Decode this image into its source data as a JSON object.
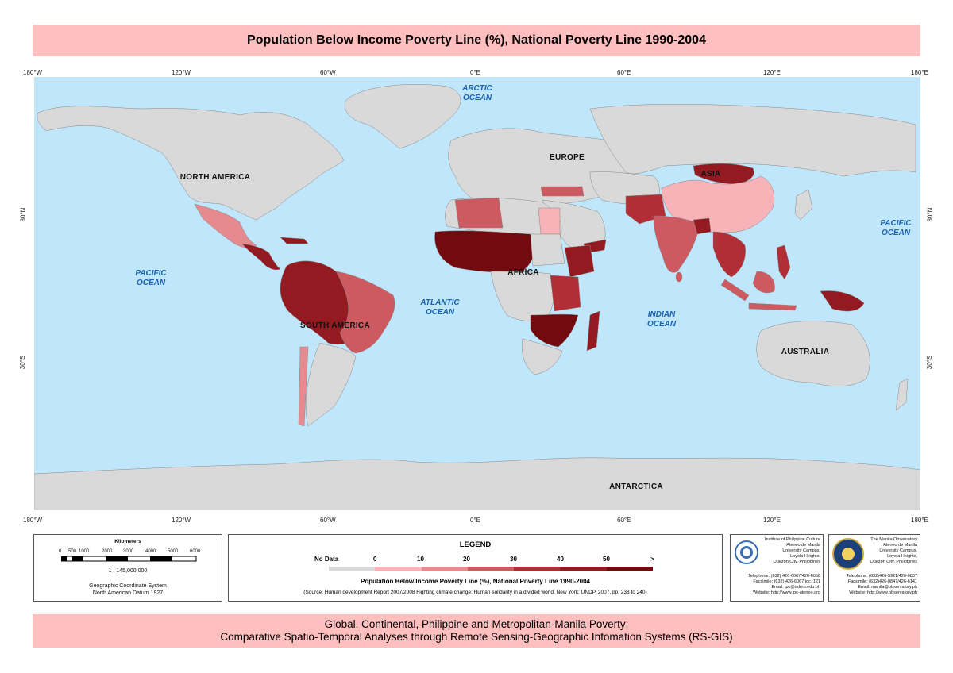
{
  "title": "Population Below Income Poverty Line (%), National Poverty Line 1990-2004",
  "longitude_ticks": [
    "180°W",
    "120°W",
    "60°W",
    "0°E",
    "60°E",
    "120°E",
    "180°E"
  ],
  "latitude_ticks": [
    "30°N",
    "30°S"
  ],
  "map_labels": {
    "oceans": {
      "arctic_1": "ARCTIC",
      "arctic_2": "OCEAN",
      "pacific_w_1": "PACIFIC",
      "pacific_w_2": "OCEAN",
      "pacific_e_1": "PACIFIC",
      "pacific_e_2": "OCEAN",
      "atlantic_1": "ATLANTIC",
      "atlantic_2": "OCEAN",
      "indian_1": "INDIAN",
      "indian_2": "OCEAN"
    },
    "continents": {
      "north_america": "NORTH AMERICA",
      "south_america": "SOUTH AMERICA",
      "europe": "EUROPE",
      "africa": "AFRICA",
      "asia": "ASIA",
      "australia": "AUSTRALIA",
      "antarctica": "ANTARCTICA"
    }
  },
  "colors": {
    "ocean": "#bfe6fb",
    "no_data": "#d9d9d9",
    "class_0_10": "#f7b3b8",
    "class_10_20": "#e58a8f",
    "class_20_30": "#cc5a60",
    "class_30_40": "#b22e36",
    "class_40_50": "#941a22",
    "class_50_plus": "#730a10"
  },
  "scale": {
    "title": "Kilometers",
    "ticks": [
      "0",
      "500",
      "1000",
      "2000",
      "3000",
      "4000",
      "5000",
      "6000"
    ],
    "ratio": "1 : 145,000,000",
    "crs_1": "Geographic Coordinate System",
    "crs_2": "North American Datum 1927"
  },
  "legend": {
    "title": "LEGEND",
    "no_data": "No Data",
    "breaks": [
      "0",
      "10",
      "20",
      "30",
      "40",
      "50",
      ">"
    ],
    "caption": "Population Below Income Poverty Line (%), National Poverty Line 1990-2004",
    "source": "(Source: Human development Report 2007/2008  Fighting climate change: Human solidarity in a divided world. New York: UNDP, 2007, pp. 238 to 240)"
  },
  "ipc": {
    "lines": [
      "Institute of Philippine Culture",
      "Ateneo de Manila",
      "University Campus,",
      "Loyola Heights,",
      "Quezon City, Philippines"
    ],
    "contact": [
      "Telephone: (632) 426-6067/426-6068",
      "Facsimile: (632) 426-6067 loc. 121",
      "Email: ipc@admu.edu.ph",
      "Website: http://www.ipc-ateneo.org"
    ]
  },
  "mo": {
    "lines": [
      "The Manila Observatory",
      "Ateneo de Manila",
      "University Campus,",
      "Loyola Heights,",
      "Quezon City, Philippines"
    ],
    "contact": [
      "Telephone: (632)426-5921/426-0837",
      "Facsimile: (632)426-0847/426-6141",
      "Email: manila@observatory.ph",
      "Website: http://www.observatory.ph"
    ]
  },
  "footer": {
    "line1": "Global, Continental, Philippine and Metropolitan-Manila Poverty:",
    "line2": "Comparative Spatio-Temporal Analyses through Remote Sensing-Geographic Infomation Systems (RS-GIS)"
  }
}
